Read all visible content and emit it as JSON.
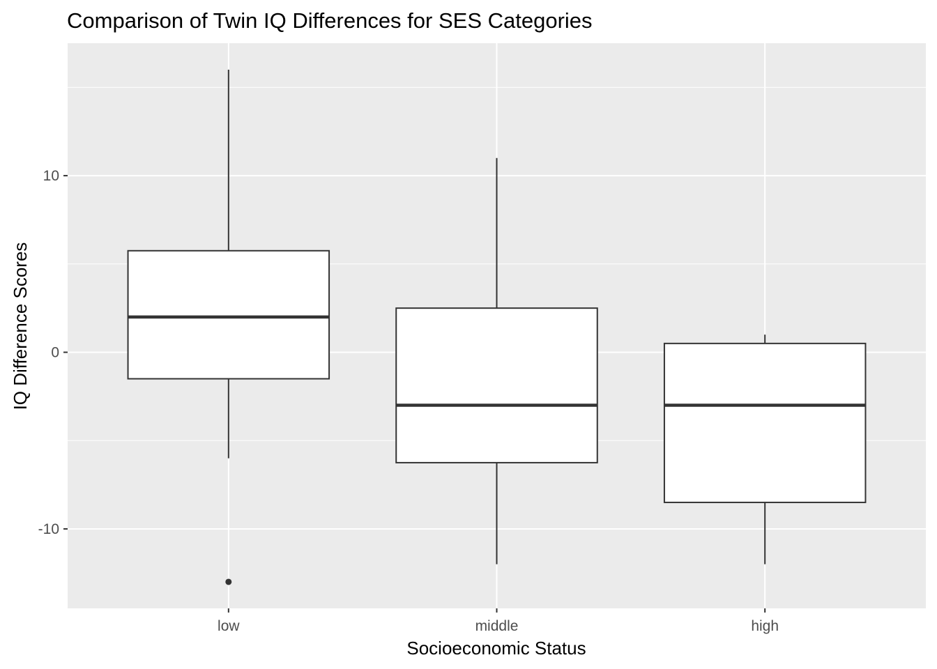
{
  "chart_data": {
    "type": "boxplot",
    "title": "Comparison of Twin IQ Differences for SES Categories",
    "xlabel": "Socioeconomic Status",
    "ylabel": "IQ Difference Scores",
    "ylim": [
      -14.5,
      17.5
    ],
    "y_ticks": [
      -10,
      0,
      10
    ],
    "y_tick_labels": [
      "-10",
      "0",
      "10"
    ],
    "y_minor_ticks": [
      -5,
      5,
      15
    ],
    "grid": true,
    "panel_background": "#ebebeb",
    "grid_color": "#ffffff",
    "box_fill": "#ffffff",
    "box_stroke": "#333333",
    "categories": [
      "low",
      "middle",
      "high"
    ],
    "boxes": [
      {
        "category": "low",
        "whisker_low": -6,
        "q1": -1.5,
        "median": 2,
        "q3": 5.75,
        "whisker_high": 16,
        "outliers": [
          -13
        ]
      },
      {
        "category": "middle",
        "whisker_low": -12,
        "q1": -6.25,
        "median": -3,
        "q3": 2.5,
        "whisker_high": 11,
        "outliers": []
      },
      {
        "category": "high",
        "whisker_low": -12,
        "q1": -8.5,
        "median": -3,
        "q3": 0.5,
        "whisker_high": 1,
        "outliers": []
      }
    ]
  }
}
